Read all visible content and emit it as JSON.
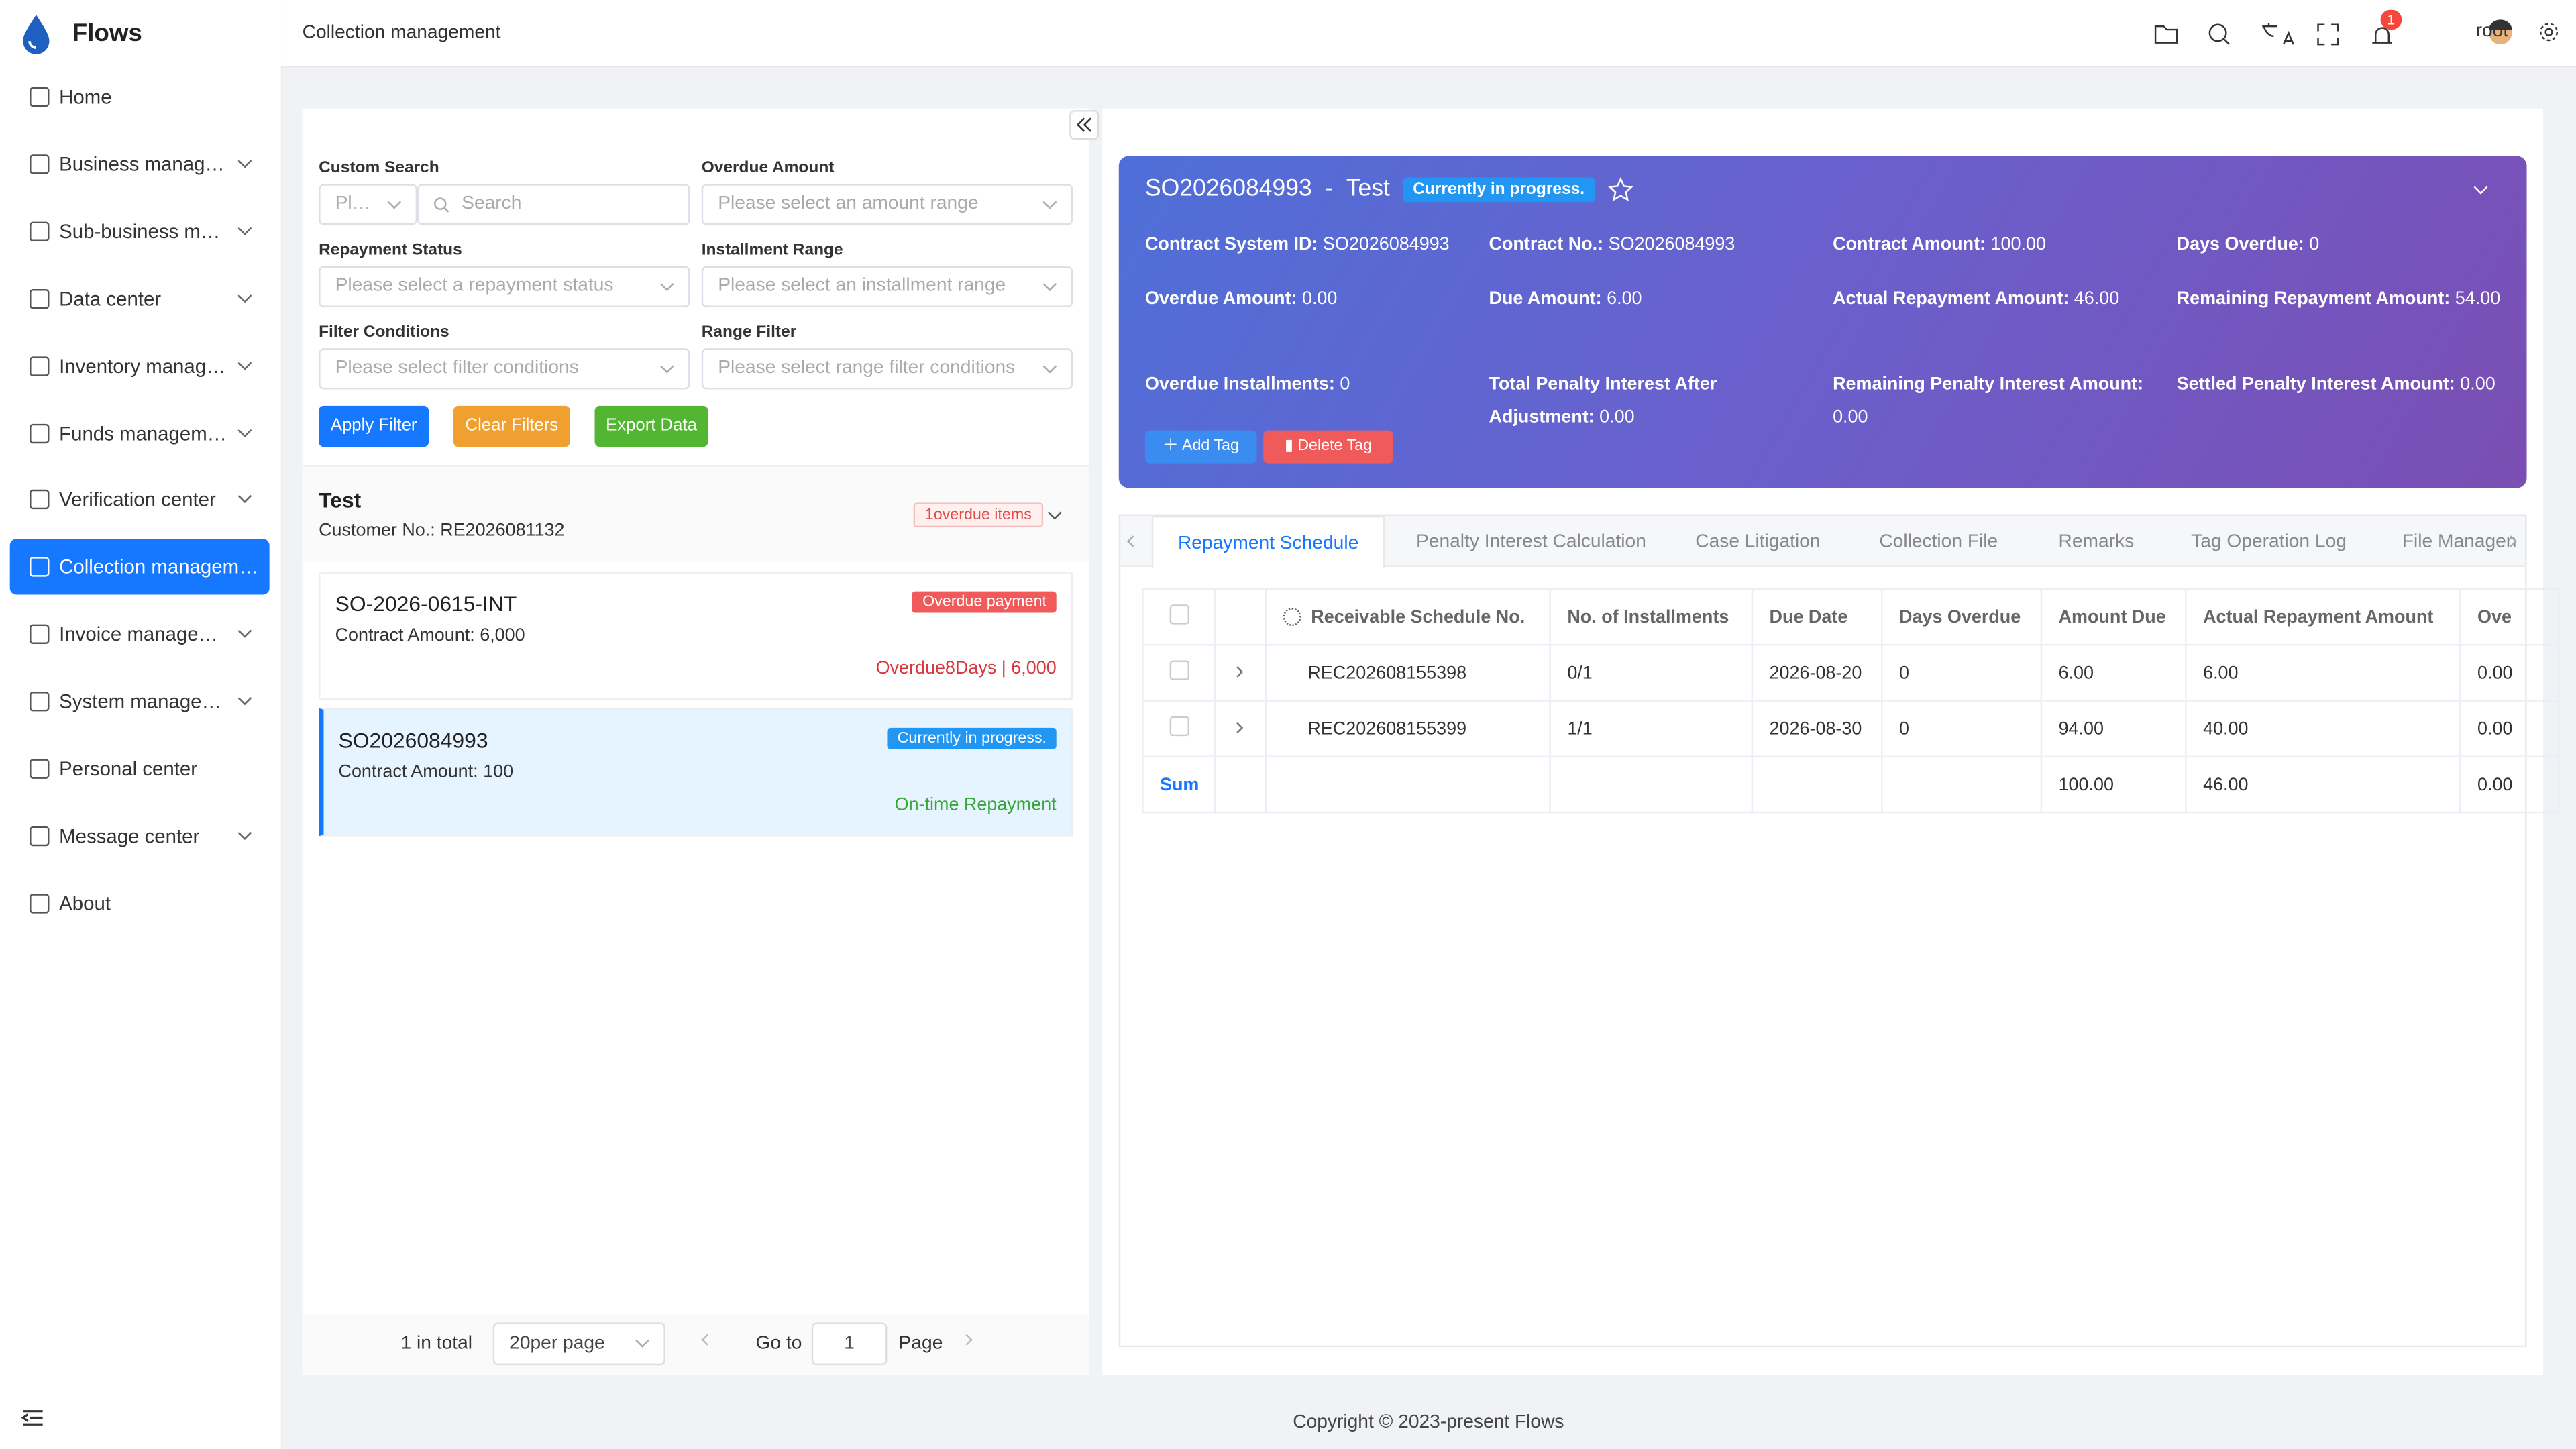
{
  "sidebar": {
    "brand": "Flows",
    "menu": [
      "Home",
      "Business manag…",
      "Sub-business m…",
      "Data center",
      "Inventory manag…",
      "Funds managem…",
      "Verification center",
      "Collection managem…",
      "Invoice manage…",
      "System manage…",
      "Personal center",
      "Message center",
      "About"
    ],
    "expandable": [
      false,
      true,
      true,
      true,
      true,
      true,
      true,
      false,
      true,
      true,
      false,
      true,
      false
    ],
    "active": 7
  },
  "header": {
    "breadcrumb": "Collection management",
    "notifications": "1",
    "user": "root"
  },
  "filters": {
    "custom_search": "Custom Search",
    "type_placeholder": "Pl…",
    "search_placeholder": "Search",
    "overdue_amount": "Overdue Amount",
    "overdue_amount_placeholder": "Please select an amount range",
    "repayment_status": "Repayment Status",
    "repayment_status_placeholder": "Please select a repayment status",
    "installment_range": "Installment Range",
    "installment_range_placeholder": "Please select an installment range",
    "filter_conditions": "Filter Conditions",
    "filter_conditions_placeholder": "Please select filter conditions",
    "range_filter": "Range Filter",
    "range_filter_placeholder": "Please select range filter conditions",
    "apply": "Apply Filter",
    "clear": "Clear Filters",
    "export": "Export Data"
  },
  "customer": {
    "name": "Test",
    "number": "Customer No.: RE2026081132",
    "badge": "1overdue items"
  },
  "contracts": [
    {
      "id": "SO-2026-0615-INT",
      "amount": "Contract Amount: 6,000",
      "status": "Overdue payment",
      "note": "Overdue8Days | 6,000"
    },
    {
      "id": "SO2026084993",
      "amount": "Contract Amount: 100",
      "status": "Currently in progress.",
      "note": "On-time Repayment"
    }
  ],
  "pagination": {
    "total": "1 in total",
    "per_page": "20per page",
    "goto": "Go to",
    "page_number": "1",
    "page": "Page"
  },
  "detail": {
    "id": "SO2026084993",
    "separator": "-",
    "name": "Test",
    "status": "Currently in progress.",
    "fields": [
      {
        "label": "Contract System ID:",
        "value": "SO2026084993"
      },
      {
        "label": "Contract No.:",
        "value": "SO2026084993"
      },
      {
        "label": "Contract Amount:",
        "value": "100.00"
      },
      {
        "label": "Days Overdue:",
        "value": "0"
      },
      {
        "label": "Overdue Amount:",
        "value": "0.00"
      },
      {
        "label": "Due Amount:",
        "value": "6.00"
      },
      {
        "label": "Actual Repayment Amount:",
        "value": "46.00"
      },
      {
        "label": "Remaining Repayment Amount:",
        "value": "54.00"
      },
      {
        "label": "Overdue Installments:",
        "value": "0"
      },
      {
        "label": "Total Penalty Interest After Adjustment:",
        "value": "0.00"
      },
      {
        "label": "Remaining Penalty Interest Amount:",
        "value": "0.00"
      },
      {
        "label": "Settled Penalty Interest Amount:",
        "value": "0.00"
      }
    ],
    "add_tag": "Add Tag",
    "delete_tag": "Delete Tag"
  },
  "tabs": [
    "Repayment Schedule",
    "Penalty Interest Calculation",
    "Case Litigation",
    "Collection File",
    "Remarks",
    "Tag Operation Log",
    "File Managen"
  ],
  "table": {
    "columns": [
      "Receivable Schedule No.",
      "No. of Installments",
      "Due Date",
      "Days Overdue",
      "Amount Due",
      "Actual Repayment Amount",
      "Ove"
    ],
    "rows": [
      [
        "REC202608155398",
        "0/1",
        "2026-08-20",
        "0",
        "6.00",
        "6.00",
        "0.00"
      ],
      [
        "REC202608155399",
        "1/1",
        "2026-08-30",
        "0",
        "94.00",
        "40.00",
        "0.00"
      ]
    ],
    "sum_label": "Sum",
    "sum": [
      "",
      "",
      "",
      "",
      "100.00",
      "46.00",
      "0.00"
    ]
  },
  "footer": "Copyright © 2023-present Flows"
}
